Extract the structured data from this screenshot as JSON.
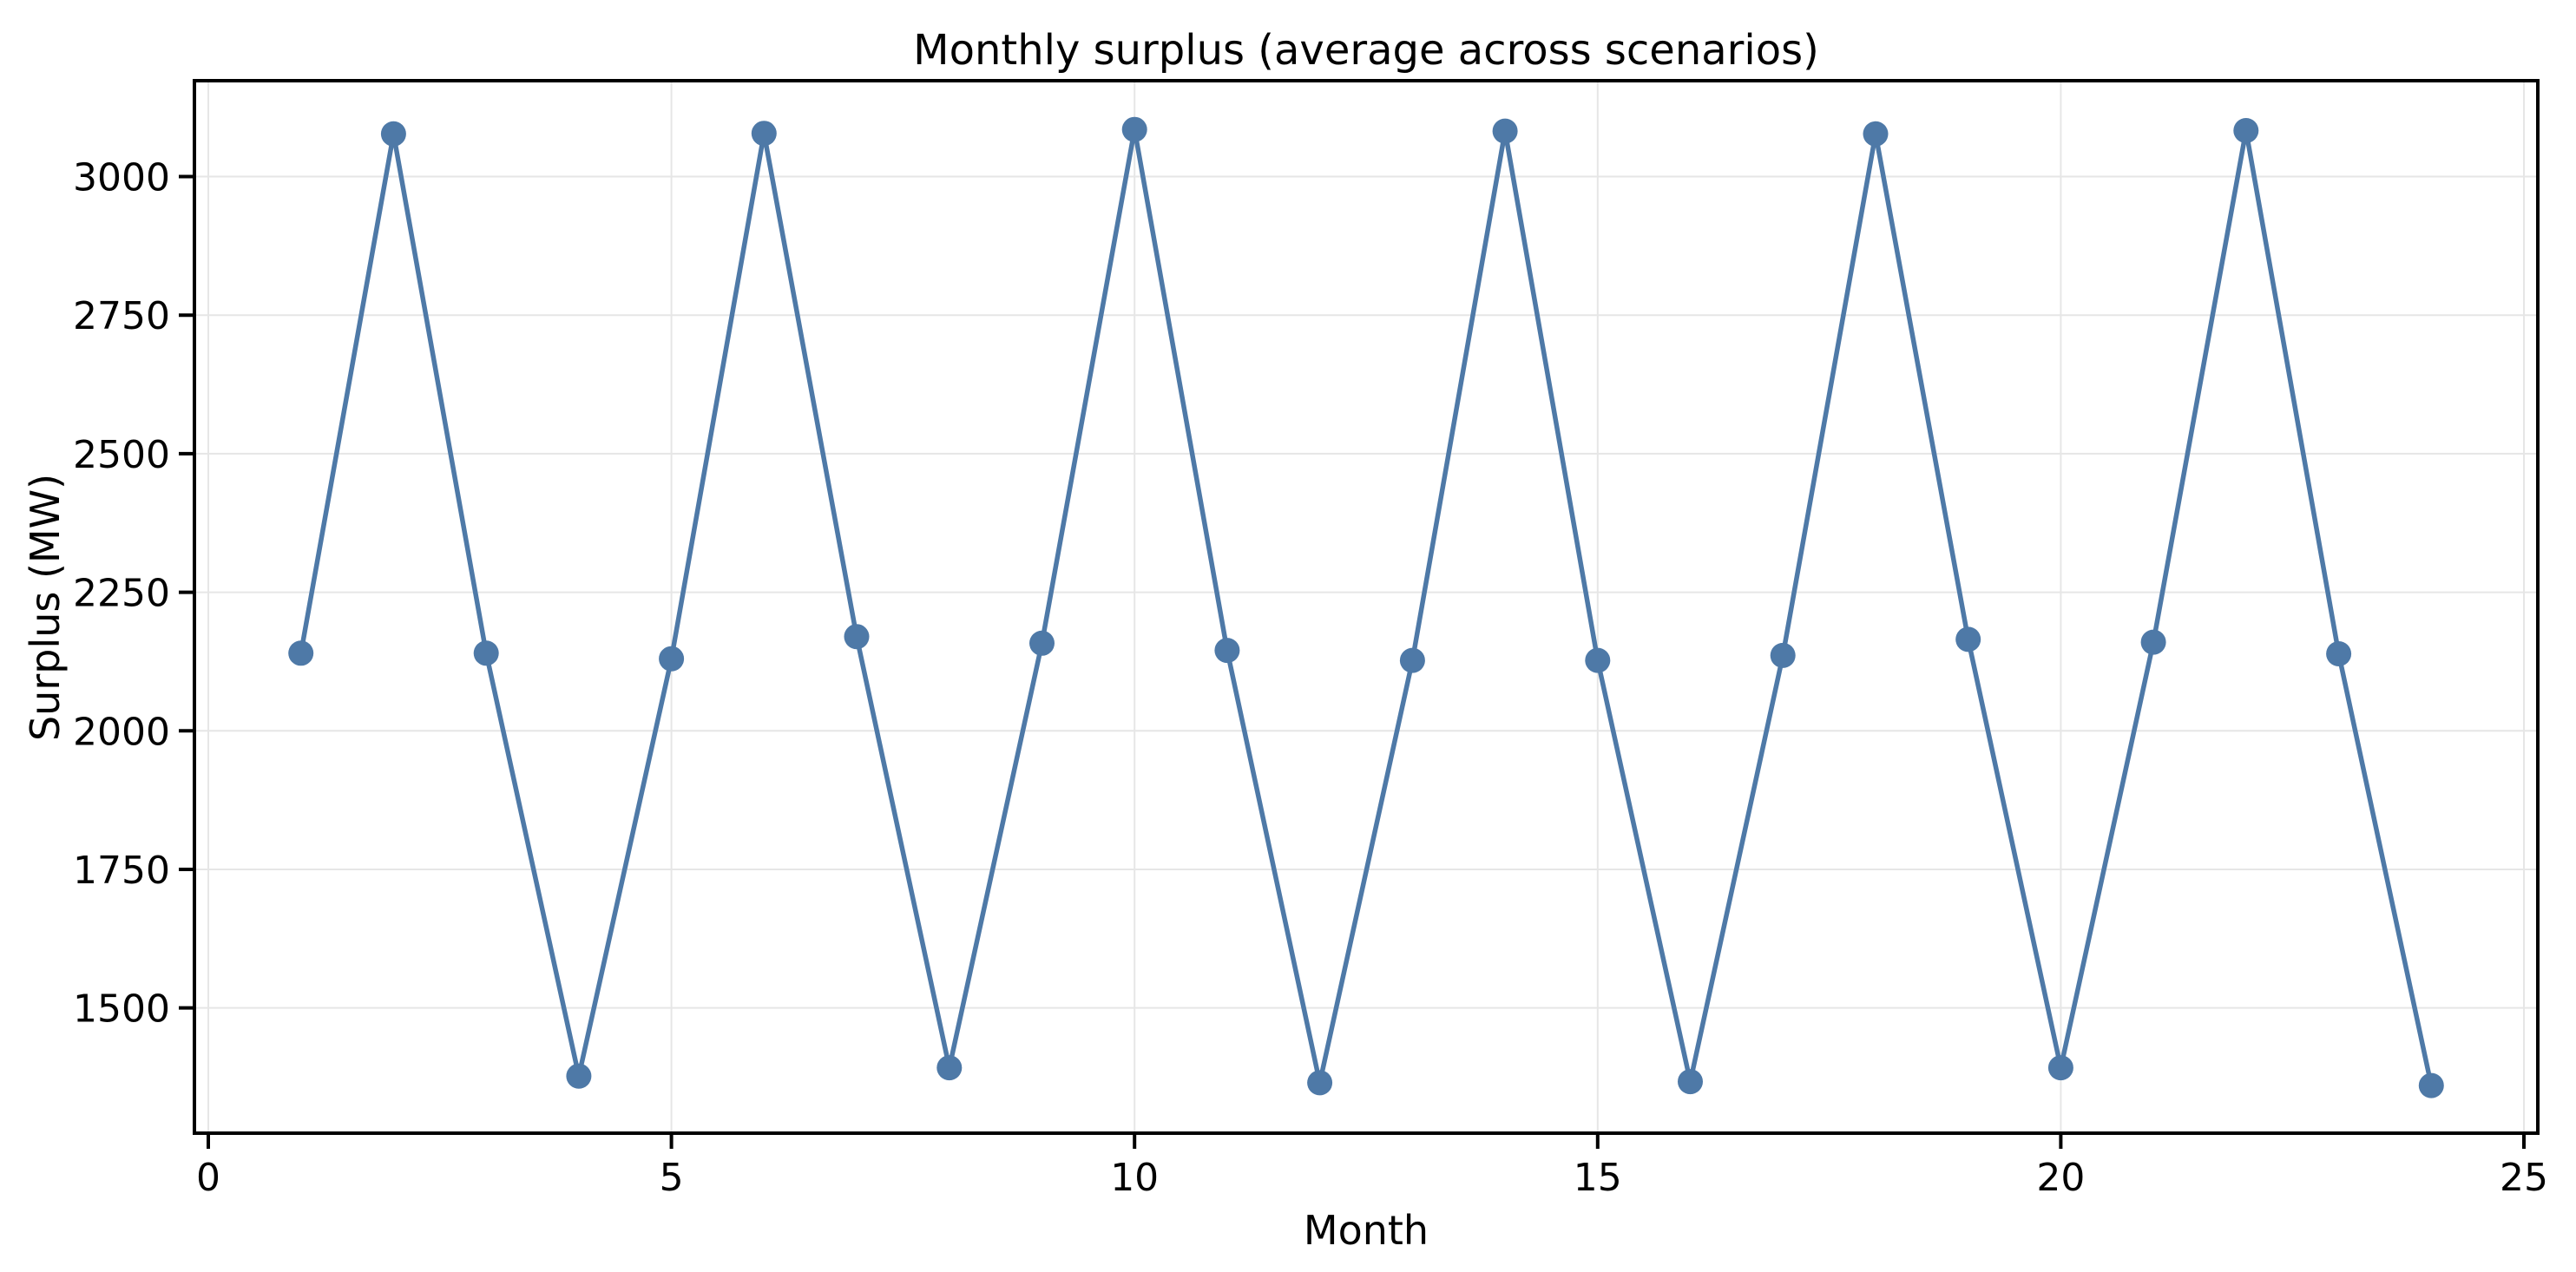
{
  "figure": {
    "title": "Monthly surplus (average across scenarios)"
  },
  "chart_data": {
    "type": "line",
    "title": "Monthly surplus (average across scenarios)",
    "xlabel": "Month",
    "ylabel": "Surplus (MW)",
    "x": [
      1,
      2,
      3,
      4,
      5,
      6,
      7,
      8,
      9,
      10,
      11,
      12,
      13,
      14,
      15,
      16,
      17,
      18,
      19,
      20,
      21,
      22,
      23,
      24
    ],
    "values": [
      2140,
      3077,
      2140,
      1377,
      2130,
      3078,
      2170,
      1392,
      2158,
      3085,
      2145,
      1365,
      2127,
      3082,
      2127,
      1367,
      2136,
      3077,
      2165,
      1392,
      2160,
      3083,
      2139,
      1360
    ],
    "x_ticks": [
      0,
      5,
      10,
      15,
      20,
      25
    ],
    "y_ticks": [
      1500,
      1750,
      2000,
      2250,
      2500,
      2750,
      3000
    ],
    "xlim": [
      -0.15,
      25.15
    ],
    "ylim": [
      1274,
      3173
    ],
    "grid": true,
    "legend": "none",
    "marker": "circle",
    "line_color": "#4e79a7",
    "grid_color": "#e6e6e6",
    "spine_color": "#000000",
    "text_color": "#000000",
    "background": "#ffffff"
  }
}
